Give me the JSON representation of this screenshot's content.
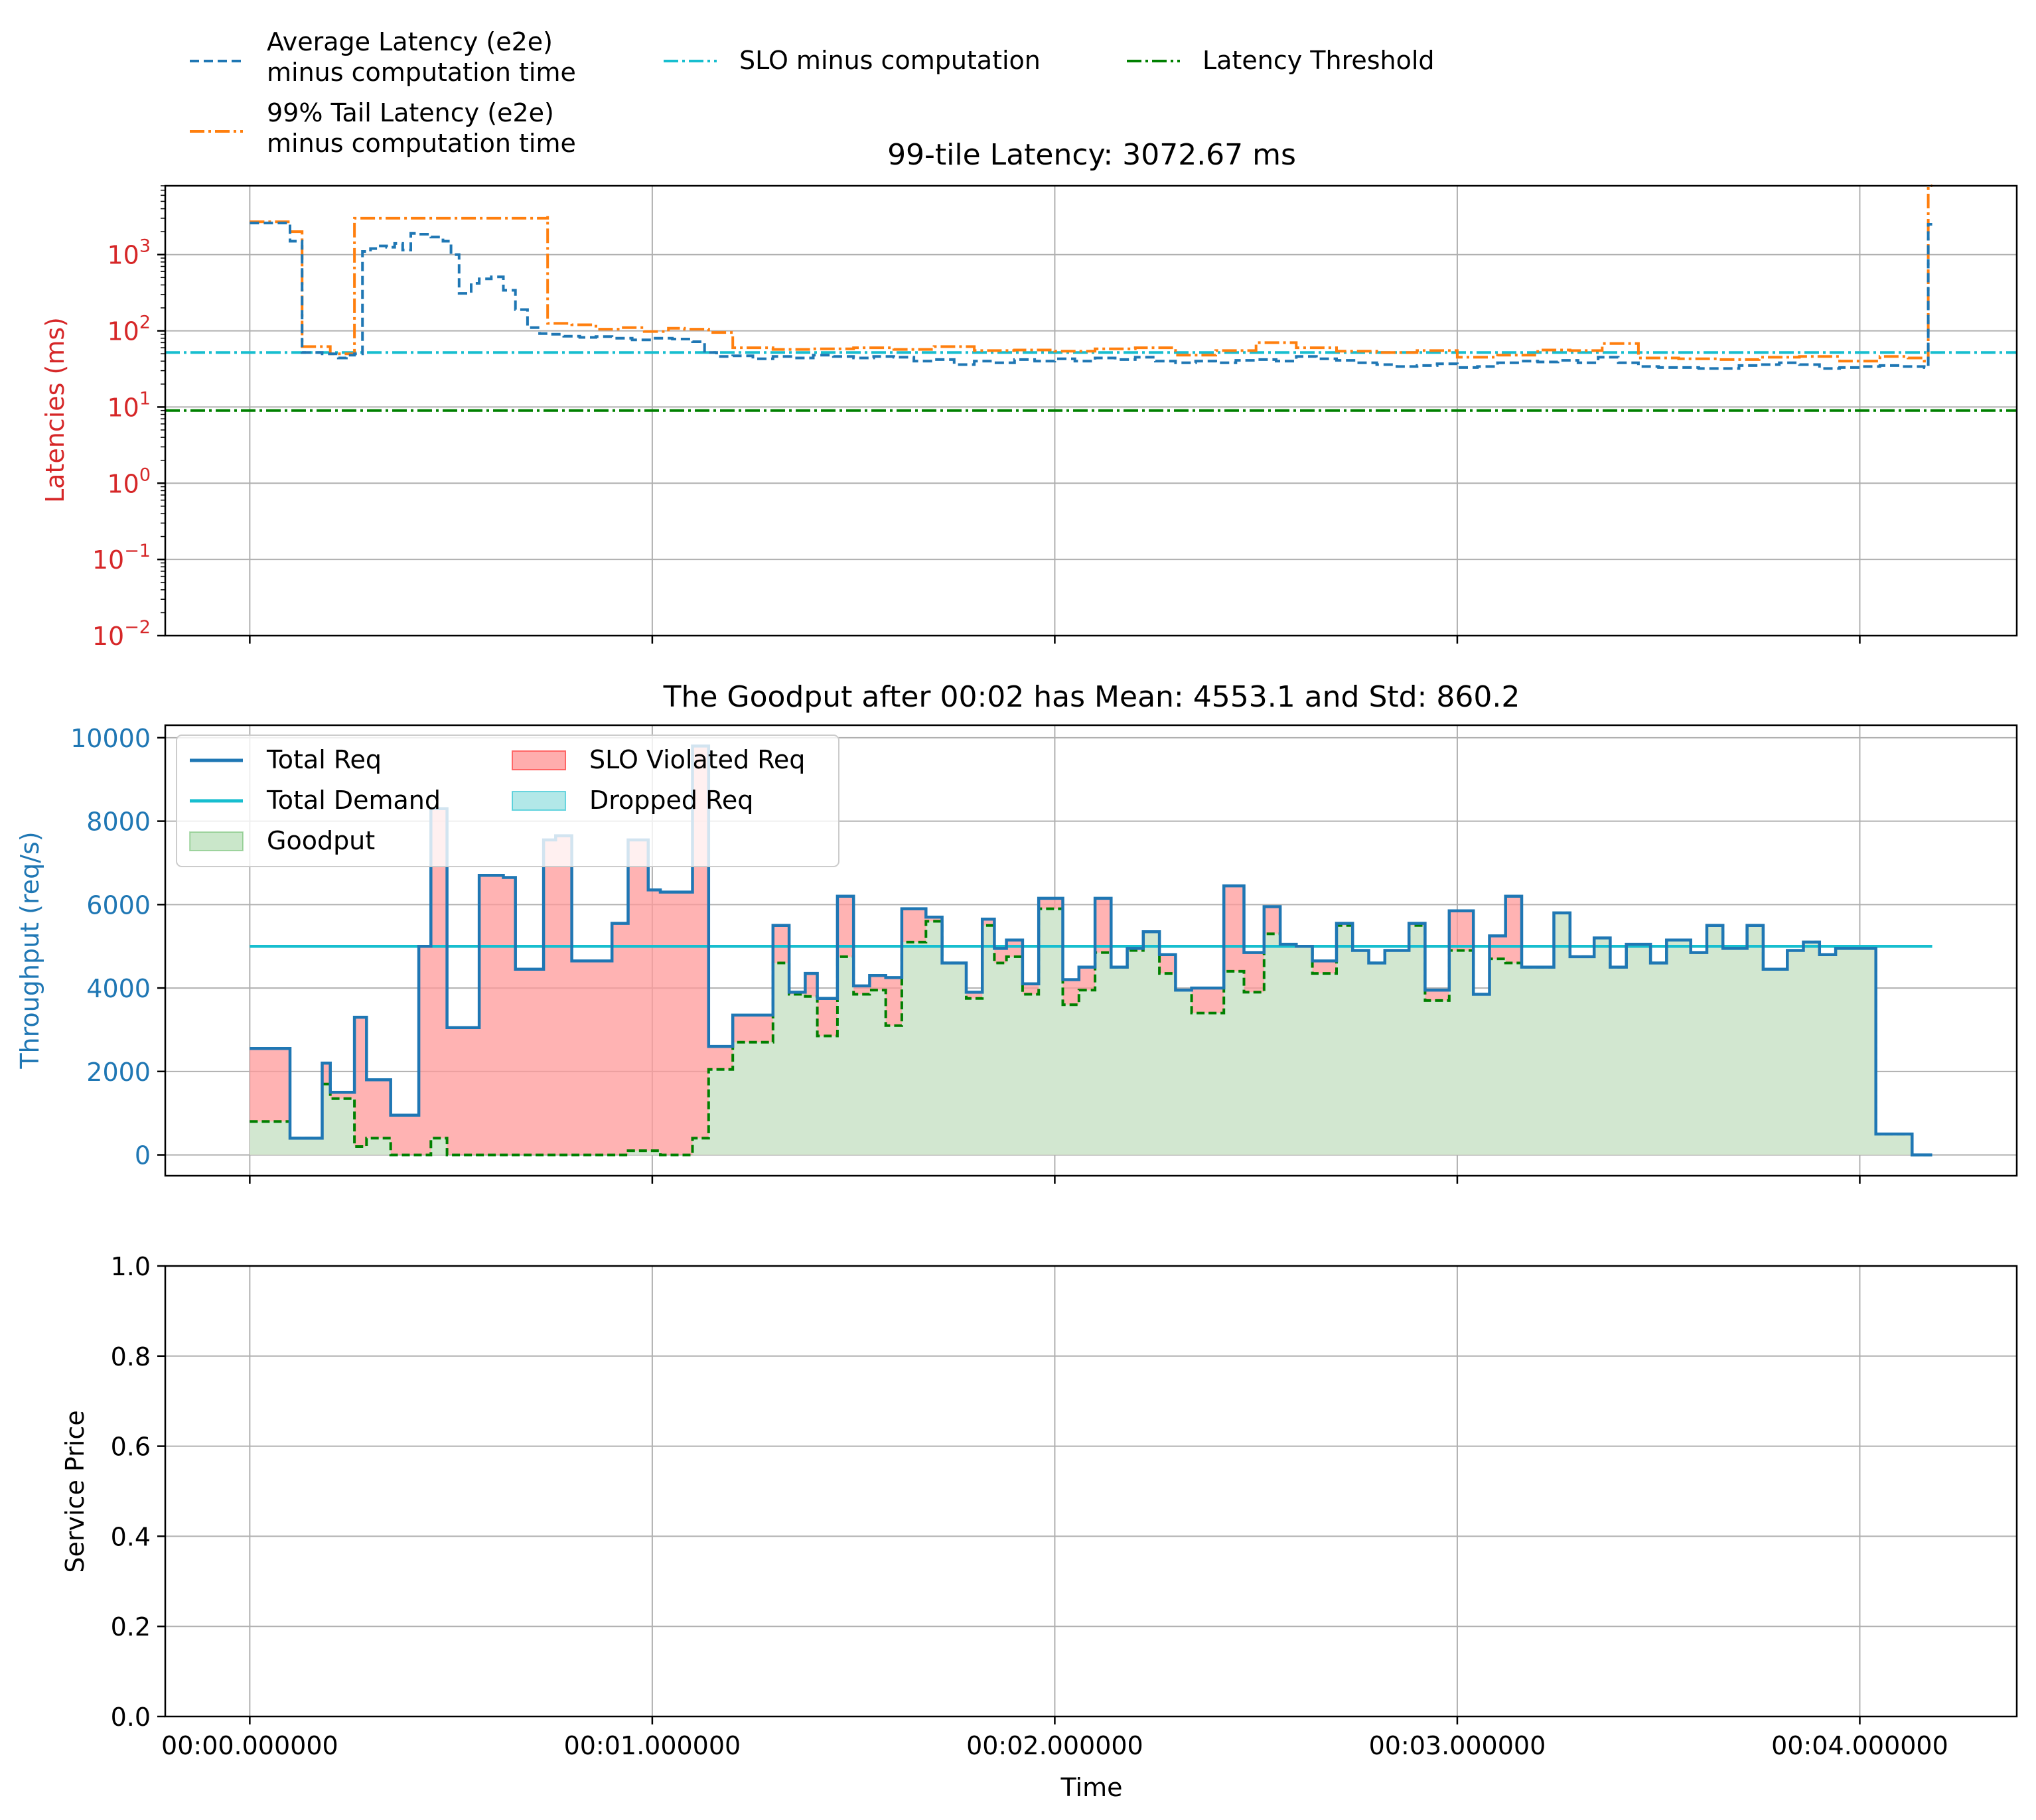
{
  "chart_data": [
    {
      "type": "line",
      "title": "99-tile Latency: 3072.67 ms",
      "xlabel": "",
      "ylabel": "Latencies (ms)",
      "yscale": "log",
      "ylim": [
        0.01,
        8000
      ],
      "yticks": [
        {
          "value": 0.01,
          "base": "10",
          "exp": "−2"
        },
        {
          "value": 0.1,
          "base": "10",
          "exp": "−1"
        },
        {
          "value": 1,
          "base": "10",
          "exp": "0"
        },
        {
          "value": 10,
          "base": "10",
          "exp": "1"
        },
        {
          "value": 100,
          "base": "10",
          "exp": "2"
        },
        {
          "value": 1000,
          "base": "10",
          "exp": "3"
        }
      ],
      "xlim": [
        -0.21,
        4.39
      ],
      "grid": true,
      "legend_position": "above plot",
      "series": [
        {
          "name": "Average Latency (e2e)\nminus computation time",
          "style": "dashed",
          "color": "#1f77b4",
          "x": [
            0.0,
            0.08,
            0.1,
            0.13,
            0.18,
            0.22,
            0.24,
            0.26,
            0.28,
            0.3,
            0.32,
            0.34,
            0.36,
            0.38,
            0.4,
            0.42,
            0.45,
            0.48,
            0.5,
            0.52,
            0.55,
            0.57,
            0.6,
            0.63,
            0.66,
            0.69,
            0.72,
            0.74,
            0.78,
            0.82,
            0.86,
            0.9,
            0.95,
            1.0,
            1.05,
            1.1,
            1.13,
            1.16,
            1.2,
            1.25,
            1.3,
            1.35,
            1.4,
            1.45,
            1.5,
            1.55,
            1.6,
            1.65,
            1.7,
            1.75,
            1.8,
            1.85,
            1.9,
            1.95,
            2.0,
            2.05,
            2.1,
            2.15,
            2.2,
            2.25,
            2.3,
            2.35,
            2.4,
            2.45,
            2.5,
            2.55,
            2.6,
            2.65,
            2.7,
            2.75,
            2.8,
            2.85,
            2.9,
            2.95,
            3.0,
            3.05,
            3.1,
            3.15,
            3.2,
            3.25,
            3.3,
            3.35,
            3.4,
            3.45,
            3.5,
            3.55,
            3.6,
            3.65,
            3.7,
            3.75,
            3.8,
            3.85,
            3.9,
            3.95,
            4.0,
            4.05,
            4.1,
            4.16,
            4.17,
            4.18
          ],
          "values": [
            2600,
            2600,
            1500,
            52,
            50,
            44,
            48,
            50,
            1100,
            1200,
            1300,
            1250,
            1400,
            1150,
            1900,
            1850,
            1700,
            1500,
            1000,
            310,
            420,
            480,
            510,
            340,
            190,
            110,
            92,
            90,
            85,
            82,
            84,
            80,
            76,
            80,
            78,
            72,
            52,
            46,
            47,
            43,
            46,
            44,
            48,
            46,
            44,
            46,
            45,
            40,
            42,
            36,
            40,
            38,
            42,
            40,
            43,
            40,
            44,
            42,
            45,
            40,
            38,
            40,
            38,
            41,
            42,
            40,
            46,
            43,
            41,
            38,
            36,
            34,
            35,
            37,
            33,
            34,
            38,
            40,
            39,
            41,
            38,
            45,
            38,
            34,
            33,
            33,
            32,
            32,
            35,
            36,
            38,
            36,
            32,
            33,
            34,
            35,
            34,
            33,
            2500,
            2500
          ]
        },
        {
          "name": "99% Tail Latency (e2e)\nminus computation time",
          "style": "dashdot",
          "color": "#ff7f0e",
          "x": [
            0.0,
            0.09,
            0.1,
            0.13,
            0.2,
            0.2,
            0.26,
            0.26,
            0.74,
            0.74,
            0.8,
            0.86,
            0.92,
            0.98,
            1.04,
            1.08,
            1.14,
            1.2,
            1.3,
            1.4,
            1.5,
            1.6,
            1.7,
            1.8,
            1.9,
            2.0,
            2.1,
            2.2,
            2.3,
            2.4,
            2.5,
            2.6,
            2.7,
            2.8,
            2.9,
            3.0,
            3.1,
            3.2,
            3.28,
            3.36,
            3.45,
            3.55,
            3.65,
            3.75,
            3.85,
            3.95,
            4.05,
            4.12,
            4.16,
            4.17,
            4.18
          ],
          "values": [
            2700,
            2700,
            2000,
            62,
            55,
            50,
            50,
            3000,
            3200,
            125,
            120,
            105,
            110,
            98,
            108,
            105,
            95,
            60,
            57,
            58,
            60,
            57,
            62,
            55,
            56,
            54,
            58,
            60,
            48,
            55,
            70,
            60,
            54,
            52,
            55,
            45,
            48,
            56,
            55,
            68,
            44,
            43,
            42,
            45,
            46,
            40,
            46,
            44,
            40,
            8000,
            8000
          ]
        },
        {
          "name": "SLO minus computation",
          "style": "dashdot",
          "color": "#17becf",
          "x": [
            -0.21,
            4.39
          ],
          "values": [
            52,
            52
          ]
        },
        {
          "name": "Latency Threshold",
          "style": "dashdot",
          "color": "#008000",
          "x": [
            -0.21,
            4.39
          ],
          "values": [
            9,
            9
          ]
        }
      ]
    },
    {
      "type": "area",
      "title": "The Goodput after 00:02 has Mean: 4553.1 and Std: 860.2",
      "xlabel": "",
      "ylabel": "Throughput (req/s)",
      "ylim": [
        -500,
        10300
      ],
      "yticks": [
        0,
        2000,
        4000,
        6000,
        8000,
        10000
      ],
      "xlim": [
        -0.21,
        4.39
      ],
      "grid": true,
      "legend_position": "upper-left",
      "x": [
        0.0,
        0.05,
        0.1,
        0.14,
        0.18,
        0.2,
        0.24,
        0.26,
        0.29,
        0.31,
        0.35,
        0.37,
        0.42,
        0.45,
        0.49,
        0.53,
        0.57,
        0.59,
        0.63,
        0.66,
        0.69,
        0.73,
        0.76,
        0.8,
        0.86,
        0.9,
        0.94,
        0.99,
        1.02,
        1.06,
        1.1,
        1.14,
        1.16,
        1.2,
        1.24,
        1.3,
        1.34,
        1.38,
        1.41,
        1.46,
        1.5,
        1.54,
        1.58,
        1.62,
        1.68,
        1.72,
        1.78,
        1.82,
        1.85,
        1.88,
        1.92,
        1.96,
        2.02,
        2.06,
        2.1,
        2.14,
        2.18,
        2.22,
        2.26,
        2.3,
        2.34,
        2.38,
        2.42,
        2.47,
        2.52,
        2.56,
        2.6,
        2.64,
        2.7,
        2.74,
        2.78,
        2.82,
        2.88,
        2.92,
        2.98,
        3.04,
        3.08,
        3.12,
        3.16,
        3.2,
        3.24,
        3.28,
        3.34,
        3.38,
        3.42,
        3.48,
        3.52,
        3.58,
        3.62,
        3.66,
        3.72,
        3.76,
        3.82,
        3.86,
        3.9,
        3.94,
        4.0,
        4.04,
        4.08,
        4.13,
        4.18
      ],
      "series": [
        {
          "name": "Total Req",
          "color": "#1f77b4",
          "values": [
            2550,
            2550,
            400,
            400,
            2200,
            1500,
            1500,
            3300,
            1800,
            1800,
            950,
            950,
            5000,
            8300,
            3050,
            3050,
            6700,
            6700,
            6650,
            4450,
            4450,
            7550,
            7650,
            4650,
            4650,
            5550,
            7550,
            6350,
            6300,
            6300,
            9800,
            2600,
            2600,
            3350,
            3350,
            5500,
            3900,
            4350,
            3750,
            6200,
            4050,
            4300,
            4250,
            5900,
            5700,
            4600,
            3900,
            5650,
            4950,
            5150,
            4100,
            6150,
            4200,
            4500,
            6150,
            4500,
            4950,
            5350,
            4800,
            3950,
            4000,
            4000,
            6450,
            4850,
            5950,
            5050,
            5000,
            4650,
            5550,
            4900,
            4600,
            4900,
            5550,
            3950,
            5850,
            3850,
            5250,
            6200,
            4500,
            4500,
            5800,
            4750,
            5200,
            4500,
            5050,
            4600,
            5150,
            4850,
            5500,
            4950,
            5500,
            4450,
            4900,
            5100,
            4800,
            4950,
            4950,
            500,
            500,
            0,
            0
          ]
        },
        {
          "name": "Total Demand",
          "color": "#17becf",
          "x": [
            0.0,
            4.18
          ],
          "values": [
            5000,
            5000
          ]
        },
        {
          "name": "Goodput",
          "color": "#2ca02c",
          "values": [
            800,
            800,
            400,
            400,
            1700,
            1350,
            1350,
            200,
            400,
            400,
            0,
            0,
            0,
            400,
            0,
            0,
            0,
            0,
            0,
            0,
            0,
            0,
            0,
            0,
            0,
            0,
            100,
            100,
            0,
            0,
            400,
            2050,
            2050,
            2700,
            2700,
            4600,
            3850,
            3800,
            2850,
            4750,
            3850,
            3950,
            3100,
            5100,
            5600,
            4600,
            3750,
            5500,
            4600,
            4750,
            3850,
            5900,
            3600,
            3950,
            4850,
            4500,
            4900,
            5350,
            4350,
            3950,
            3400,
            3400,
            4400,
            3900,
            5300,
            5000,
            5000,
            4350,
            5500,
            4900,
            4600,
            4900,
            5500,
            3700,
            4900,
            3850,
            4700,
            4600,
            4500,
            4500,
            5800,
            4750,
            5200,
            4500,
            5050,
            4600,
            5150,
            4850,
            5500,
            4950,
            5500,
            4450,
            4900,
            5100,
            4800,
            4950,
            4950,
            500,
            500,
            0,
            0
          ]
        },
        {
          "name": "SLO Violated Req",
          "color": "#ff9999"
        },
        {
          "name": "Dropped Req",
          "color": "#7fd8d8"
        }
      ]
    },
    {
      "type": "line",
      "title": "",
      "xlabel": "Time",
      "ylabel": "Service Price",
      "ylim": [
        0.0,
        1.0
      ],
      "yticks": [
        "0.0",
        "0.2",
        "0.4",
        "0.6",
        "0.8",
        "1.0"
      ],
      "xlim": [
        -0.21,
        4.39
      ],
      "xticks": [
        "00:00.000000",
        "00:01.000000",
        "00:02.000000",
        "00:03.000000",
        "00:04.000000"
      ],
      "grid": true,
      "series": []
    }
  ]
}
